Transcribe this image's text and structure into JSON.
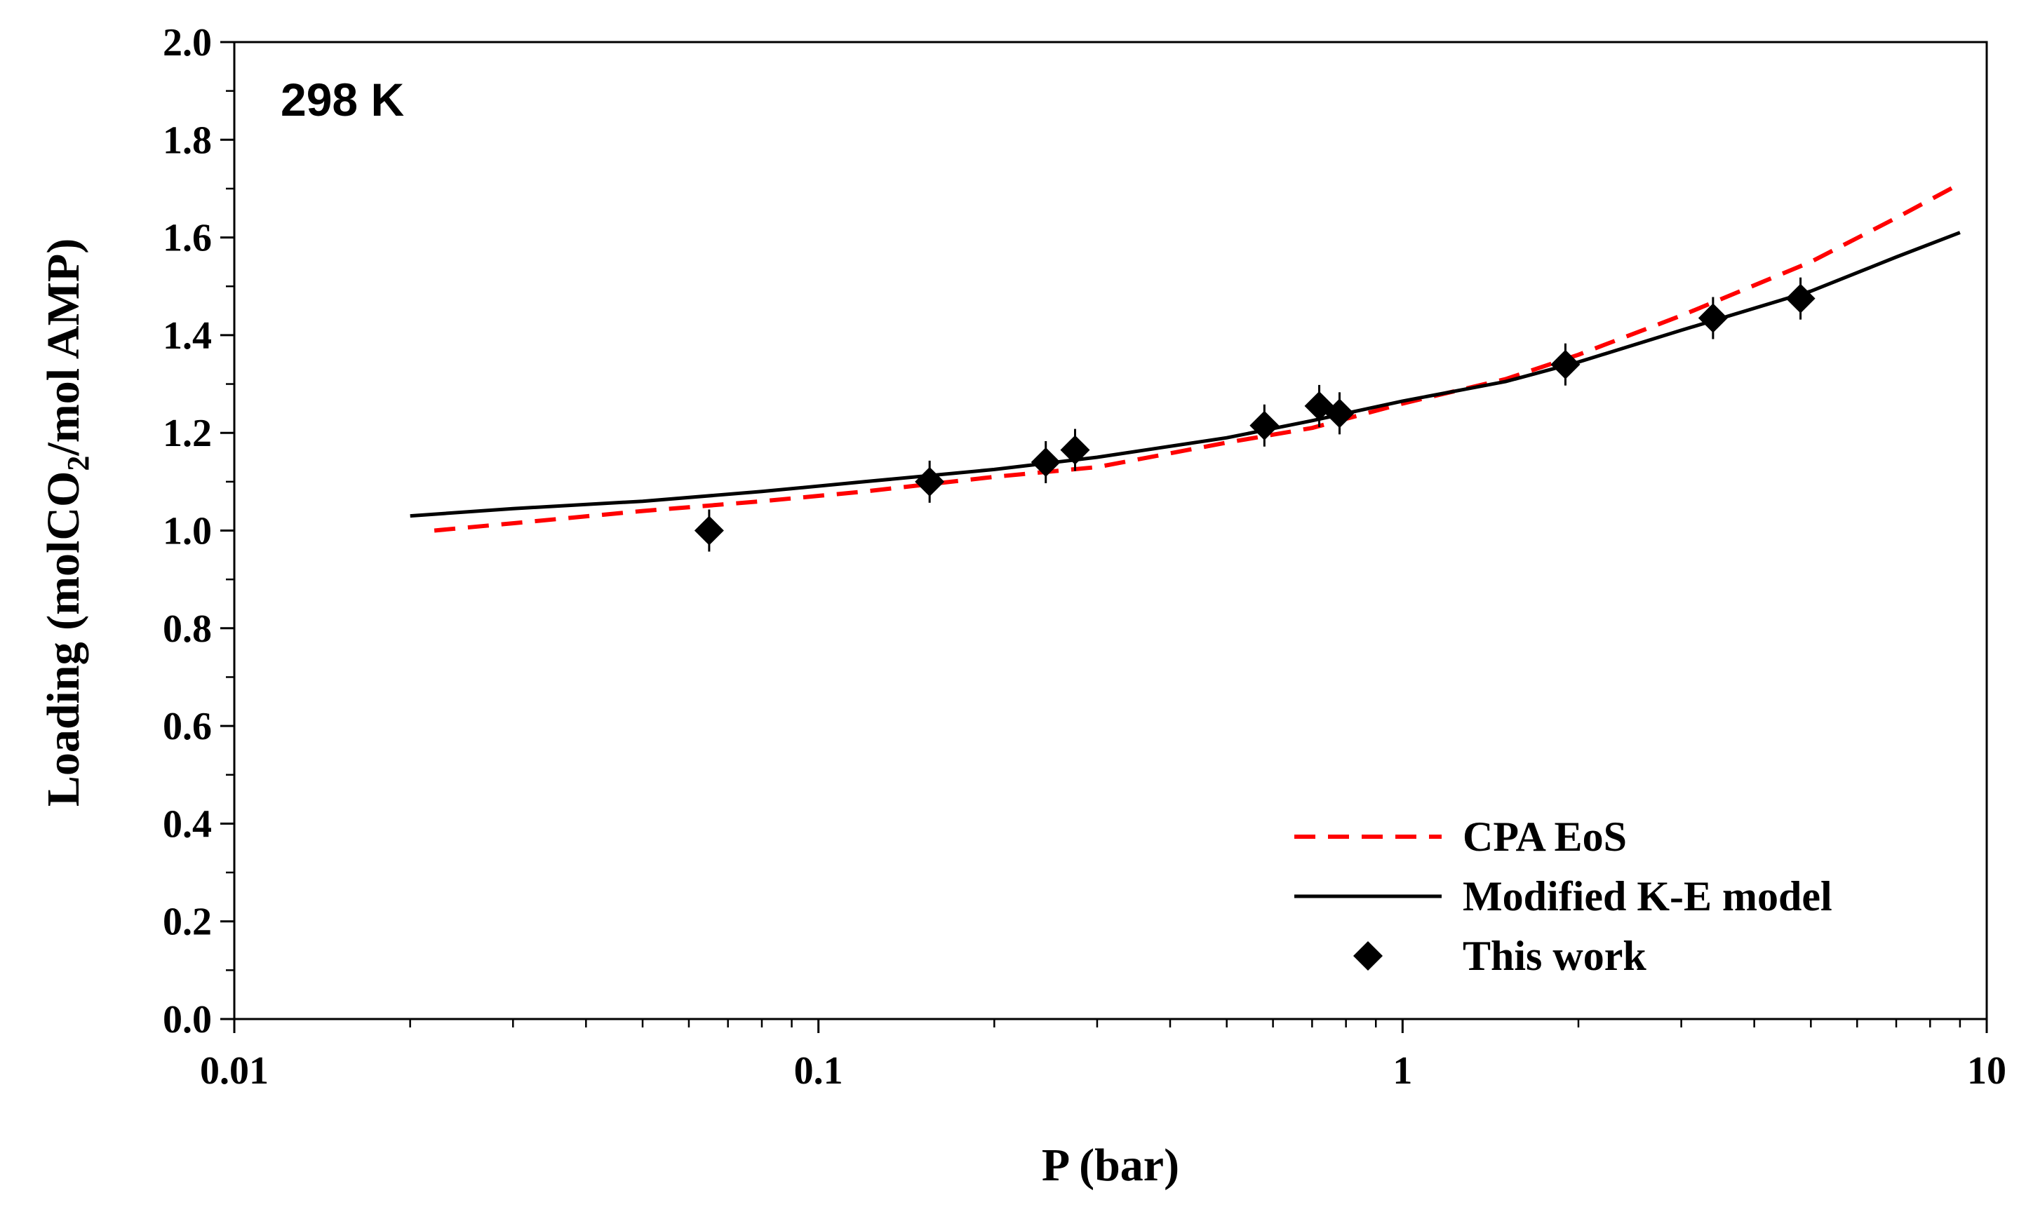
{
  "chart_data": {
    "type": "scatter",
    "title": "",
    "annotation": "298 K",
    "xlabel": "P (bar)",
    "ylabel": {
      "prefix": "Loading (molCO",
      "subscript": "2",
      "suffix": "/mol AMP)"
    },
    "x_scale": "log",
    "xlim": [
      0.01,
      10
    ],
    "ylim": [
      0.0,
      2.0
    ],
    "x_ticks": [
      0.01,
      0.1,
      1,
      10
    ],
    "x_tick_labels": [
      "0.01",
      "0.1",
      "1",
      "10"
    ],
    "y_ticks": [
      0.0,
      0.2,
      0.4,
      0.6,
      0.8,
      1.0,
      1.2,
      1.4,
      1.6,
      1.8,
      2.0
    ],
    "y_tick_labels": [
      "0.0",
      "0.2",
      "0.4",
      "0.6",
      "0.8",
      "1.0",
      "1.2",
      "1.4",
      "1.6",
      "1.8",
      "2.0"
    ],
    "grid": false,
    "legend_position": "bottom-right",
    "series": [
      {
        "name": "CPA EoS",
        "kind": "line",
        "style": "dashed",
        "color": "#ff0000",
        "x": [
          0.022,
          0.03,
          0.05,
          0.08,
          0.12,
          0.2,
          0.3,
          0.5,
          0.7,
          1.0,
          1.5,
          2.0,
          3.0,
          5.0,
          7.0,
          9.0
        ],
        "y": [
          1.0,
          1.015,
          1.04,
          1.06,
          1.08,
          1.11,
          1.13,
          1.18,
          1.21,
          1.26,
          1.31,
          1.36,
          1.44,
          1.55,
          1.64,
          1.71
        ]
      },
      {
        "name": "Modified K-E model",
        "kind": "line",
        "style": "solid",
        "color": "#000000",
        "x": [
          0.02,
          0.03,
          0.05,
          0.08,
          0.12,
          0.2,
          0.3,
          0.5,
          0.7,
          1.0,
          1.5,
          2.0,
          3.0,
          5.0,
          7.0,
          9.0
        ],
        "y": [
          1.03,
          1.045,
          1.06,
          1.08,
          1.1,
          1.125,
          1.15,
          1.19,
          1.225,
          1.265,
          1.305,
          1.345,
          1.41,
          1.49,
          1.56,
          1.61
        ]
      },
      {
        "name": "This work",
        "kind": "scatter",
        "marker": "diamond",
        "color": "#000000",
        "x": [
          0.065,
          0.155,
          0.245,
          0.275,
          0.58,
          0.72,
          0.78,
          1.9,
          3.4,
          4.8
        ],
        "y": [
          1.0,
          1.1,
          1.14,
          1.165,
          1.215,
          1.255,
          1.24,
          1.34,
          1.435,
          1.475
        ]
      }
    ]
  }
}
